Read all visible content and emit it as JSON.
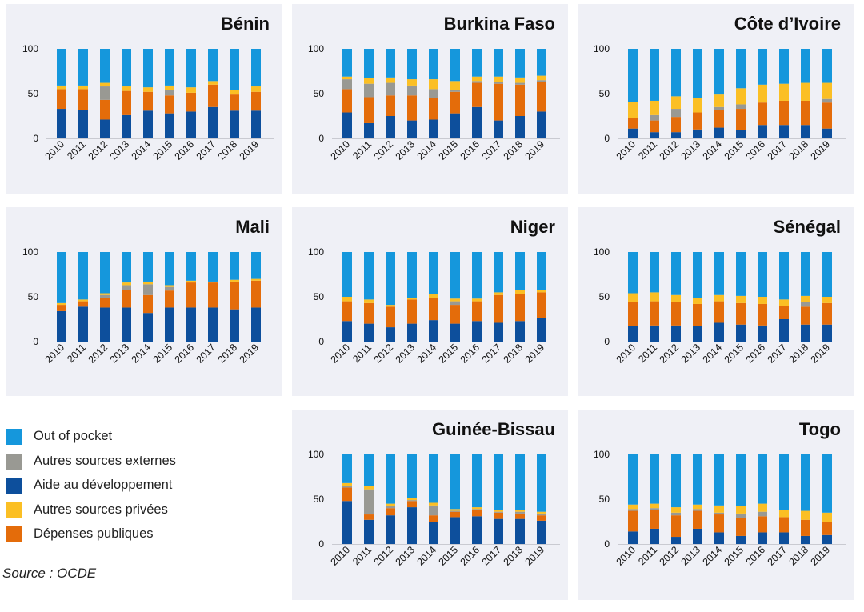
{
  "colors": {
    "public": "#e46c0a",
    "private": "#fbbf24",
    "aid": "#0d4f9c",
    "external": "#999993",
    "oop": "#1597dc",
    "panel_bg": "#eff0f6"
  },
  "legend": [
    {
      "key": "oop",
      "label": "Out of pocket"
    },
    {
      "key": "external",
      "label": "Autres sources externes"
    },
    {
      "key": "aid",
      "label": "Aide au développement"
    },
    {
      "key": "private",
      "label": "Autres sources privées"
    },
    {
      "key": "public",
      "label": "Dépenses publiques"
    }
  ],
  "source": "Source : OCDE",
  "chart_data": [
    {
      "type": "bar",
      "stacked": true,
      "title": "Bénin",
      "categories": [
        "2010",
        "2011",
        "2012",
        "2013",
        "2014",
        "2015",
        "2016",
        "2017",
        "2018",
        "2019"
      ],
      "yticks": [
        "0",
        "50",
        "100"
      ],
      "ylim": [
        0,
        100
      ],
      "series": [
        {
          "key": "aid",
          "name": "Aide au développement",
          "values": [
            33,
            32,
            21,
            26,
            31,
            28,
            30,
            35,
            31,
            31
          ]
        },
        {
          "key": "public",
          "name": "Dépenses publiques",
          "values": [
            22,
            23,
            22,
            27,
            21,
            20,
            21,
            25,
            18,
            21
          ]
        },
        {
          "key": "external",
          "name": "Autres sources externes",
          "values": [
            0,
            0,
            15,
            0,
            0,
            6,
            0,
            0,
            0,
            0
          ]
        },
        {
          "key": "private",
          "name": "Autres sources privées",
          "values": [
            4,
            4,
            4,
            5,
            5,
            5,
            6,
            4,
            5,
            6
          ]
        },
        {
          "key": "oop",
          "name": "Out of pocket",
          "values": [
            41,
            41,
            38,
            42,
            43,
            41,
            43,
            36,
            46,
            42
          ]
        }
      ]
    },
    {
      "type": "bar",
      "stacked": true,
      "title": "Burkina Faso",
      "categories": [
        "2010",
        "2011",
        "2012",
        "2013",
        "2014",
        "2015",
        "2016",
        "2017",
        "2018",
        "2019"
      ],
      "yticks": [
        "0",
        "50",
        "100"
      ],
      "ylim": [
        0,
        100
      ],
      "series": [
        {
          "key": "aid",
          "name": "Aide au développement",
          "values": [
            29,
            17,
            25,
            20,
            21,
            28,
            35,
            20,
            25,
            30
          ]
        },
        {
          "key": "public",
          "name": "Dépenses publiques",
          "values": [
            26,
            29,
            23,
            28,
            24,
            24,
            27,
            41,
            35,
            33
          ]
        },
        {
          "key": "external",
          "name": "Autres sources externes",
          "values": [
            11,
            15,
            14,
            11,
            10,
            2,
            2,
            2,
            2,
            2
          ]
        },
        {
          "key": "private",
          "name": "Autres sources privées",
          "values": [
            3,
            6,
            6,
            7,
            11,
            10,
            5,
            6,
            6,
            5
          ]
        },
        {
          "key": "oop",
          "name": "Out of pocket",
          "values": [
            31,
            33,
            32,
            34,
            34,
            36,
            31,
            31,
            32,
            30
          ]
        }
      ]
    },
    {
      "type": "bar",
      "stacked": true,
      "title": "Côte d’Ivoire",
      "categories": [
        "2010",
        "2011",
        "2012",
        "2013",
        "2014",
        "2015",
        "2016",
        "2017",
        "2018",
        "2019"
      ],
      "yticks": [
        "0",
        "50",
        "100"
      ],
      "ylim": [
        0,
        100
      ],
      "series": [
        {
          "key": "aid",
          "name": "Aide au développement",
          "values": [
            11,
            7,
            7,
            10,
            12,
            9,
            15,
            15,
            15,
            11
          ]
        },
        {
          "key": "public",
          "name": "Dépenses publiques",
          "values": [
            12,
            13,
            17,
            19,
            20,
            24,
            25,
            27,
            27,
            29
          ]
        },
        {
          "key": "external",
          "name": "Autres sources externes",
          "values": [
            0,
            6,
            9,
            0,
            3,
            5,
            0,
            0,
            0,
            4
          ]
        },
        {
          "key": "private",
          "name": "Autres sources privées",
          "values": [
            18,
            16,
            14,
            16,
            14,
            18,
            20,
            19,
            20,
            18
          ]
        },
        {
          "key": "oop",
          "name": "Out of pocket",
          "values": [
            59,
            58,
            53,
            55,
            51,
            44,
            40,
            39,
            38,
            38
          ]
        }
      ]
    },
    {
      "type": "bar",
      "stacked": true,
      "title": "Mali",
      "categories": [
        "2010",
        "2011",
        "2012",
        "2013",
        "2014",
        "2015",
        "2016",
        "2017",
        "2018",
        "2019"
      ],
      "yticks": [
        "0",
        "50",
        "100"
      ],
      "ylim": [
        0,
        100
      ],
      "series": [
        {
          "key": "aid",
          "name": "Aide au développement",
          "values": [
            34,
            39,
            38,
            38,
            32,
            38,
            38,
            38,
            36,
            38
          ]
        },
        {
          "key": "public",
          "name": "Dépenses publiques",
          "values": [
            7,
            6,
            11,
            20,
            20,
            19,
            28,
            28,
            31,
            30
          ]
        },
        {
          "key": "external",
          "name": "Autres sources externes",
          "values": [
            0,
            0,
            3,
            5,
            12,
            4,
            0,
            0,
            0,
            0
          ]
        },
        {
          "key": "private",
          "name": "Autres sources privées",
          "values": [
            2,
            2,
            2,
            3,
            3,
            2,
            2,
            1,
            2,
            2
          ]
        },
        {
          "key": "oop",
          "name": "Out of pocket",
          "values": [
            57,
            53,
            46,
            34,
            33,
            37,
            32,
            33,
            31,
            30
          ]
        }
      ]
    },
    {
      "type": "bar",
      "stacked": true,
      "title": "Niger",
      "categories": [
        "2010",
        "2011",
        "2012",
        "2013",
        "2014",
        "2015",
        "2016",
        "2017",
        "2018",
        "2019"
      ],
      "yticks": [
        "0",
        "50",
        "100"
      ],
      "ylim": [
        0,
        100
      ],
      "series": [
        {
          "key": "aid",
          "name": "Aide au développement",
          "values": [
            23,
            20,
            16,
            20,
            24,
            20,
            23,
            21,
            23,
            26
          ]
        },
        {
          "key": "public",
          "name": "Dépenses publiques",
          "values": [
            22,
            23,
            23,
            27,
            25,
            21,
            22,
            31,
            30,
            29
          ]
        },
        {
          "key": "external",
          "name": "Autres sources externes",
          "values": [
            0,
            0,
            0,
            0,
            0,
            4,
            0,
            0,
            0,
            0
          ]
        },
        {
          "key": "private",
          "name": "Autres sources privées",
          "values": [
            5,
            4,
            2,
            2,
            4,
            3,
            3,
            3,
            5,
            3
          ]
        },
        {
          "key": "oop",
          "name": "Out of pocket",
          "values": [
            50,
            53,
            59,
            51,
            47,
            52,
            52,
            45,
            42,
            42
          ]
        }
      ]
    },
    {
      "type": "bar",
      "stacked": true,
      "title": "Sénégal",
      "categories": [
        "2010",
        "2011",
        "2012",
        "2013",
        "2014",
        "2015",
        "2016",
        "2017",
        "2018",
        "2019"
      ],
      "yticks": [
        "0",
        "50",
        "100"
      ],
      "ylim": [
        0,
        100
      ],
      "series": [
        {
          "key": "aid",
          "name": "Aide au développement",
          "values": [
            17,
            18,
            18,
            17,
            21,
            19,
            18,
            25,
            19,
            19
          ]
        },
        {
          "key": "public",
          "name": "Dépenses publiques",
          "values": [
            27,
            27,
            26,
            25,
            24,
            24,
            24,
            15,
            20,
            24
          ]
        },
        {
          "key": "external",
          "name": "Autres sources externes",
          "values": [
            0,
            0,
            0,
            0,
            0,
            0,
            0,
            0,
            5,
            0
          ]
        },
        {
          "key": "private",
          "name": "Autres sources privées",
          "values": [
            10,
            10,
            8,
            7,
            7,
            8,
            8,
            7,
            7,
            7
          ]
        },
        {
          "key": "oop",
          "name": "Out of pocket",
          "values": [
            46,
            45,
            48,
            51,
            48,
            49,
            50,
            53,
            49,
            50
          ]
        }
      ]
    },
    {
      "type": "bar",
      "stacked": true,
      "title": "Guinée-Bissau",
      "categories": [
        "2010",
        "2011",
        "2012",
        "2013",
        "2014",
        "2015",
        "2016",
        "2017",
        "2018",
        "2019"
      ],
      "yticks": [
        "0",
        "50",
        "100"
      ],
      "ylim": [
        0,
        100
      ],
      "series": [
        {
          "key": "aid",
          "name": "Aide au développement",
          "values": [
            48,
            27,
            32,
            41,
            25,
            30,
            31,
            28,
            28,
            26
          ]
        },
        {
          "key": "public",
          "name": "Dépenses publiques",
          "values": [
            15,
            6,
            8,
            7,
            7,
            6,
            7,
            7,
            6,
            6
          ]
        },
        {
          "key": "external",
          "name": "Autres sources externes",
          "values": [
            2,
            28,
            2,
            1,
            11,
            1,
            1,
            1,
            2,
            2
          ]
        },
        {
          "key": "private",
          "name": "Autres sources privées",
          "values": [
            3,
            4,
            3,
            2,
            3,
            2,
            2,
            2,
            2,
            2
          ]
        },
        {
          "key": "oop",
          "name": "Out of pocket",
          "values": [
            32,
            35,
            55,
            49,
            54,
            61,
            59,
            62,
            62,
            64
          ]
        }
      ]
    },
    {
      "type": "bar",
      "stacked": true,
      "title": "Togo",
      "categories": [
        "2010",
        "2011",
        "2012",
        "2013",
        "2014",
        "2015",
        "2016",
        "2017",
        "2018",
        "2019"
      ],
      "yticks": [
        "0",
        "50",
        "100"
      ],
      "ylim": [
        0,
        100
      ],
      "series": [
        {
          "key": "aid",
          "name": "Aide au développement",
          "values": [
            14,
            17,
            8,
            17,
            13,
            9,
            13,
            13,
            9,
            10
          ]
        },
        {
          "key": "public",
          "name": "Dépenses publiques",
          "values": [
            23,
            21,
            24,
            20,
            20,
            20,
            18,
            17,
            18,
            15
          ]
        },
        {
          "key": "external",
          "name": "Autres sources externes",
          "values": [
            2,
            2,
            3,
            2,
            2,
            5,
            5,
            0,
            0,
            0
          ]
        },
        {
          "key": "private",
          "name": "Autres sources privées",
          "values": [
            5,
            5,
            6,
            5,
            8,
            8,
            9,
            8,
            10,
            10
          ]
        },
        {
          "key": "oop",
          "name": "Out of pocket",
          "values": [
            56,
            55,
            59,
            56,
            57,
            58,
            55,
            62,
            63,
            65
          ]
        }
      ]
    }
  ]
}
